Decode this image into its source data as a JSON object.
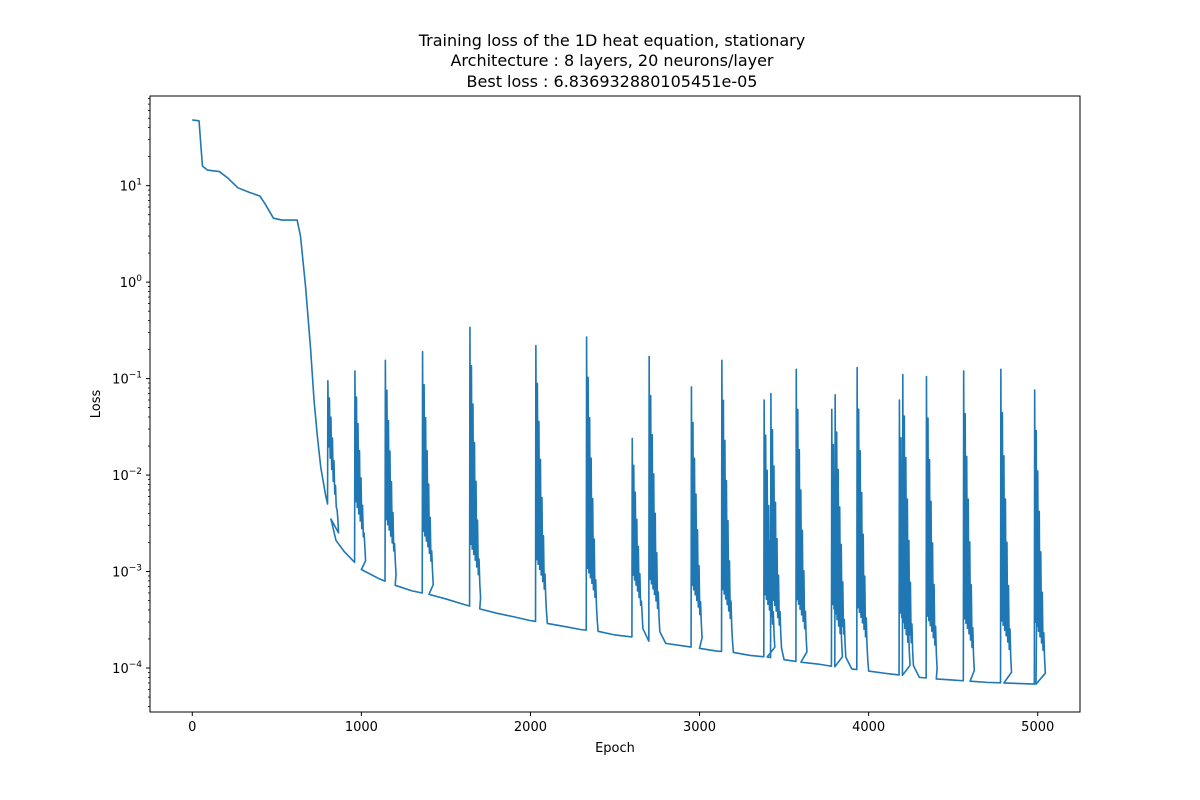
{
  "chart_data": {
    "type": "line",
    "title": [
      "Training loss of the 1D heat equation, stationary",
      "Architecture : 8 layers, 20 neurons/layer",
      "Best loss : 6.836932880105451e-05"
    ],
    "xlabel": "Epoch",
    "ylabel": "Loss",
    "xlim": [
      -250,
      5250
    ],
    "ylim": [
      3.5e-05,
      85
    ],
    "yscale": "log",
    "grid": false,
    "x_ticks": [
      0,
      1000,
      2000,
      3000,
      4000,
      5000
    ],
    "x_tick_labels": [
      "0",
      "1000",
      "2000",
      "3000",
      "4000",
      "5000"
    ],
    "y_ticks": [
      0.0001,
      0.001,
      0.01,
      0.1,
      1,
      10
    ],
    "y_tick_labels": [
      {
        "base": "10",
        "exp": "−4"
      },
      {
        "base": "10",
        "exp": "−3"
      },
      {
        "base": "10",
        "exp": "−2"
      },
      {
        "base": "10",
        "exp": "−1"
      },
      {
        "base": "10",
        "exp": "0"
      },
      {
        "base": "10",
        "exp": "1"
      }
    ],
    "line_color": "#1f77b4",
    "baseline": [
      [
        0,
        48
      ],
      [
        40,
        47
      ],
      [
        60,
        16
      ],
      [
        90,
        14.5
      ],
      [
        160,
        14
      ],
      [
        210,
        12
      ],
      [
        270,
        9.5
      ],
      [
        340,
        8.5
      ],
      [
        400,
        7.8
      ],
      [
        430,
        6.5
      ],
      [
        480,
        4.6
      ],
      [
        530,
        4.4
      ],
      [
        600,
        4.4
      ],
      [
        620,
        4.4
      ],
      [
        640,
        3.0
      ],
      [
        670,
        0.9
      ],
      [
        700,
        0.2
      ],
      [
        720,
        0.06
      ],
      [
        740,
        0.025
      ],
      [
        760,
        0.012
      ],
      [
        790,
        0.006
      ],
      [
        820,
        0.0035
      ],
      [
        850,
        0.0021
      ],
      [
        900,
        0.0016
      ],
      [
        950,
        0.0013
      ],
      [
        1000,
        0.00105
      ],
      [
        1100,
        0.00085
      ],
      [
        1200,
        0.00072
      ],
      [
        1300,
        0.00063
      ],
      [
        1400,
        0.00058
      ],
      [
        1500,
        0.00052
      ],
      [
        1600,
        0.00046
      ],
      [
        1700,
        0.00041
      ],
      [
        1800,
        0.00037
      ],
      [
        1900,
        0.00034
      ],
      [
        2000,
        0.00031
      ],
      [
        2100,
        0.00029
      ],
      [
        2200,
        0.00027
      ],
      [
        2300,
        0.00025
      ],
      [
        2400,
        0.00024
      ],
      [
        2500,
        0.00022
      ],
      [
        2600,
        0.00021
      ],
      [
        2700,
        0.00019
      ],
      [
        2800,
        0.00018
      ],
      [
        2900,
        0.00017
      ],
      [
        3000,
        0.00016
      ],
      [
        3100,
        0.00015
      ],
      [
        3200,
        0.000145
      ],
      [
        3300,
        0.000135
      ],
      [
        3400,
        0.00013
      ],
      [
        3500,
        0.000122
      ],
      [
        3600,
        0.000115
      ],
      [
        3700,
        0.00011
      ],
      [
        3800,
        0.000103
      ],
      [
        3900,
        9.8e-05
      ],
      [
        4000,
        9.3e-05
      ],
      [
        4100,
        8.8e-05
      ],
      [
        4200,
        8.4e-05
      ],
      [
        4300,
        8e-05
      ],
      [
        4400,
        7.7e-05
      ],
      [
        4500,
        7.5e-05
      ],
      [
        4600,
        7.3e-05
      ],
      [
        4700,
        7.1e-05
      ],
      [
        4800,
        7e-05
      ],
      [
        4900,
        6.9e-05
      ],
      [
        4990,
        6.8e-05
      ]
    ],
    "spikes": [
      {
        "x": 800,
        "peak": 0.095
      },
      {
        "x": 960,
        "peak": 0.12
      },
      {
        "x": 1140,
        "peak": 0.155
      },
      {
        "x": 1360,
        "peak": 0.19
      },
      {
        "x": 1640,
        "peak": 0.34
      },
      {
        "x": 2030,
        "peak": 0.22
      },
      {
        "x": 2330,
        "peak": 0.27
      },
      {
        "x": 2600,
        "peak": 0.024
      },
      {
        "x": 2700,
        "peak": 0.17
      },
      {
        "x": 2950,
        "peak": 0.082
      },
      {
        "x": 3130,
        "peak": 0.155
      },
      {
        "x": 3380,
        "peak": 0.06
      },
      {
        "x": 3420,
        "peak": 0.07
      },
      {
        "x": 3570,
        "peak": 0.125
      },
      {
        "x": 3780,
        "peak": 0.048
      },
      {
        "x": 3800,
        "peak": 0.068
      },
      {
        "x": 3930,
        "peak": 0.13
      },
      {
        "x": 4180,
        "peak": 0.06
      },
      {
        "x": 4200,
        "peak": 0.11
      },
      {
        "x": 4340,
        "peak": 0.105
      },
      {
        "x": 4560,
        "peak": 0.12
      },
      {
        "x": 4780,
        "peak": 0.125
      },
      {
        "x": 4980,
        "peak": 0.076
      }
    ],
    "end_point": [
      5000,
      0.0105
    ]
  }
}
